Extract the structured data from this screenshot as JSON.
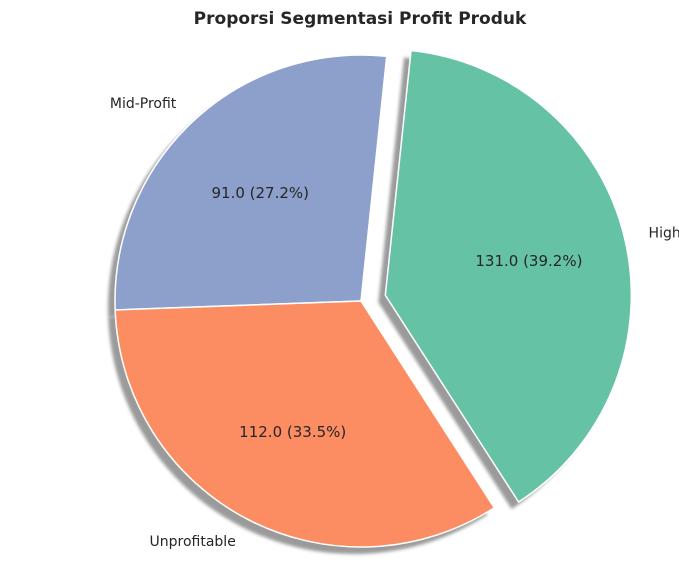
{
  "chart_data": {
    "type": "pie",
    "title": "Proporsi Segmentasi Profit Produk",
    "slices": [
      {
        "label": "Mid-Profit",
        "value": 91.0,
        "percent": 27.2,
        "display": "91.0 (27.2%)",
        "color": "#8da0cb",
        "exploded": false
      },
      {
        "label": "Unprofitable",
        "value": 112.0,
        "percent": 33.5,
        "display": "112.0 (33.5%)",
        "color": "#fc8d62",
        "exploded": false
      },
      {
        "label": "High-Profit",
        "value": 131.0,
        "percent": 39.2,
        "display": "131.0 (39.2%)",
        "color": "#66c2a5",
        "exploded": true
      }
    ],
    "shadow": true,
    "legend": "none"
  }
}
